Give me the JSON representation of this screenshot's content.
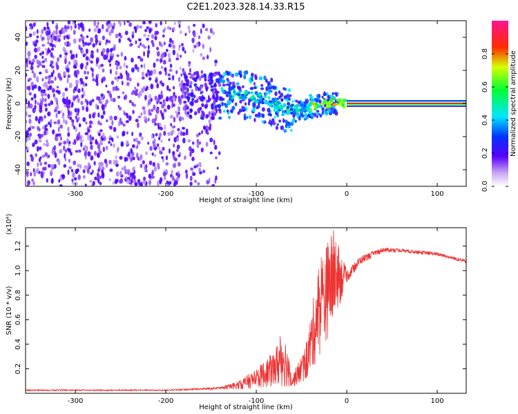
{
  "title": "C2E1.2023.328.14.33.R15",
  "colors": {
    "snr_line": "#ee3333",
    "spectro_noise": "#7a1fe0",
    "axis": "#000000"
  },
  "chart_data": [
    {
      "type": "heatmap",
      "name": "spectrogram",
      "xlabel": "Height of straight line (km)",
      "ylabel": "Frequency (Hz)",
      "xlim": [
        -355,
        132
      ],
      "ylim": [
        -50,
        50
      ],
      "xticks": [
        -300,
        -200,
        -100,
        0,
        100
      ],
      "xtick_labels": [
        "-300",
        "-200",
        "-100",
        "0",
        "100"
      ],
      "yticks": [
        -40,
        -20,
        0,
        20,
        40
      ],
      "ytick_labels": [
        "-40",
        "-20",
        "0",
        "20",
        "40"
      ],
      "ridge": {
        "description_points": [
          {
            "x": -130,
            "y": 5
          },
          {
            "x": -110,
            "y": 5
          },
          {
            "x": -90,
            "y": 2
          },
          {
            "x": -70,
            "y": -3
          },
          {
            "x": -55,
            "y": -4
          },
          {
            "x": -40,
            "y": -2
          },
          {
            "x": -25,
            "y": 0
          },
          {
            "x": -10,
            "y": 1
          },
          {
            "x": 0,
            "y": 0
          },
          {
            "x": 132,
            "y": 0
          }
        ],
        "steady_amplitude": 0.95,
        "steady_from_x": 0
      },
      "noise_region_x": [
        -355,
        -140
      ],
      "colorbar": {
        "label": "Normalized spectral amplitude",
        "range": [
          0,
          1
        ],
        "ticks": [
          0,
          0.2,
          0.4,
          0.6,
          0.8
        ],
        "tick_labels": [
          "0.0",
          "0.2",
          "0.4",
          "0.6",
          "0.8"
        ]
      }
    },
    {
      "type": "line",
      "name": "snr",
      "xlabel": "Height of straight line (km)",
      "ylabel": "SNR (10 * v/v)",
      "scale_label": "(x10⁴)",
      "xlim": [
        -355,
        132
      ],
      "ylim": [
        0,
        1.35
      ],
      "xticks": [
        -300,
        -200,
        -100,
        0,
        100
      ],
      "xtick_labels": [
        "-300",
        "-200",
        "-100",
        "0",
        "100"
      ],
      "yticks": [
        0.2,
        0.4,
        0.6,
        0.8,
        1.0,
        1.2
      ],
      "ytick_labels": [
        "0.2",
        "0.4",
        "0.6",
        "0.8",
        "1.0",
        "1.2"
      ],
      "envelope": [
        {
          "x": -355,
          "base": 0.02,
          "spike": 0.03
        },
        {
          "x": -200,
          "base": 0.02,
          "spike": 0.03
        },
        {
          "x": -140,
          "base": 0.03,
          "spike": 0.05
        },
        {
          "x": -120,
          "base": 0.03,
          "spike": 0.1
        },
        {
          "x": -100,
          "base": 0.04,
          "spike": 0.2
        },
        {
          "x": -80,
          "base": 0.05,
          "spike": 0.35
        },
        {
          "x": -70,
          "base": 0.05,
          "spike": 0.55
        },
        {
          "x": -60,
          "base": 0.05,
          "spike": 0.15
        },
        {
          "x": -45,
          "base": 0.1,
          "spike": 0.4
        },
        {
          "x": -30,
          "base": 0.3,
          "spike": 1.1
        },
        {
          "x": -15,
          "base": 0.55,
          "spike": 1.35
        },
        {
          "x": 0,
          "base": 0.9,
          "spike": 1.0
        },
        {
          "x": 15,
          "base": 1.05,
          "spike": 1.12
        },
        {
          "x": 40,
          "base": 1.15,
          "spike": 1.19
        },
        {
          "x": 60,
          "base": 1.15,
          "spike": 1.18
        },
        {
          "x": 100,
          "base": 1.12,
          "spike": 1.15
        },
        {
          "x": 132,
          "base": 1.06,
          "spike": 1.09
        }
      ]
    }
  ]
}
